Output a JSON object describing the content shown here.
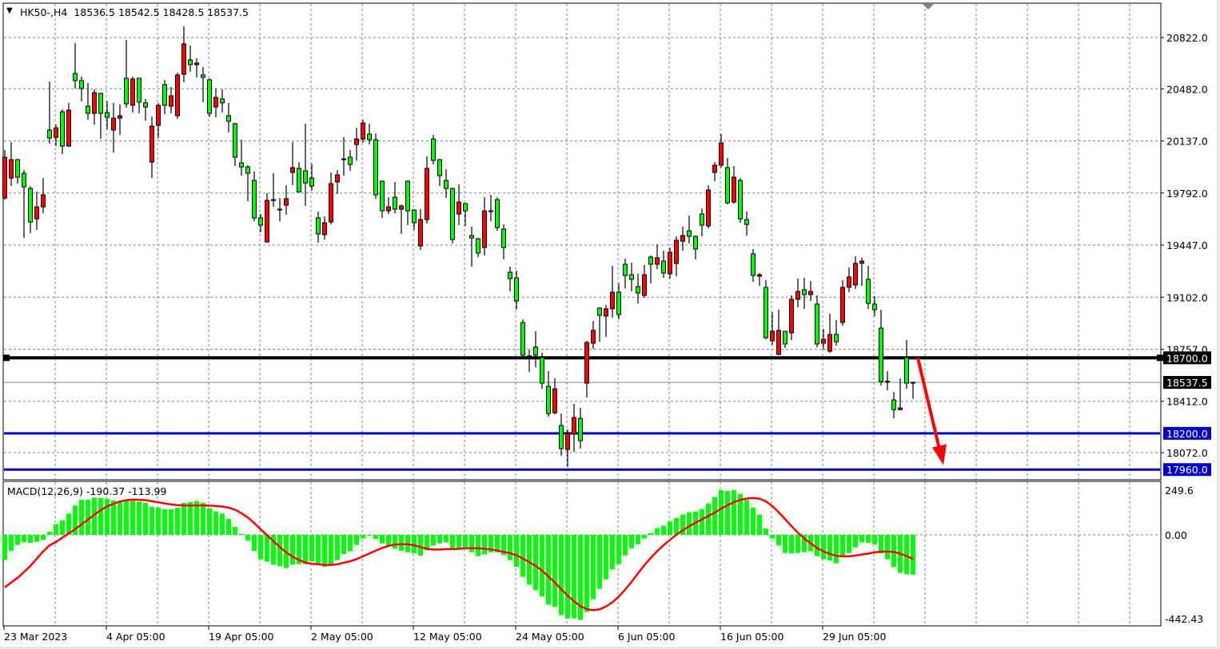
{
  "header": {
    "symbol": "HK50-,H4",
    "ohlc_text": "18536.5 18542.5 18428.5 18537.5",
    "menu_icon": "triangle-down-icon"
  },
  "colors": {
    "bull": "#ff0000",
    "bear": "#00ff00",
    "outline": "#000000",
    "grid": "#778899",
    "support_line": "#0000c8",
    "key_line": "#000000",
    "arrow": "#ff0000",
    "macd_hist": "#00ff00",
    "macd_signal": "#ff0000"
  },
  "chart_data": [
    {
      "type": "candlestick",
      "symbol": "HK50-",
      "timeframe": "H4",
      "ylim": [
        17898,
        20912
      ],
      "grid": true,
      "price_ticks": [
        "20822.0",
        "20482.0",
        "20137.0",
        "19792.0",
        "19447.0",
        "19102.0",
        "18757.0",
        "18412.0",
        "18072.0"
      ],
      "time_ticks": [
        {
          "bar": 0,
          "label": "23 Mar 2023"
        },
        {
          "bar": 16,
          "label": "4 Apr 05:00"
        },
        {
          "bar": 32,
          "label": "19 Apr 05:00"
        },
        {
          "bar": 48,
          "label": "2 May 05:00"
        },
        {
          "bar": 64,
          "label": "12 May 05:00"
        },
        {
          "bar": 80,
          "label": "24 May 05:00"
        },
        {
          "bar": 96,
          "label": "6 Jun 05:00"
        },
        {
          "bar": 112,
          "label": "16 Jun 05:00"
        },
        {
          "bar": 128,
          "label": "29 Jun 05:00"
        }
      ],
      "ohlc": [
        [
          19759,
          20076,
          19748,
          20029
        ],
        [
          19891,
          20129,
          19838,
          20013
        ],
        [
          20013,
          20018,
          19854,
          19897
        ],
        [
          19923,
          19944,
          19495,
          19833
        ],
        [
          19822,
          19838,
          19526,
          19600
        ],
        [
          19621,
          19801,
          19548,
          19700
        ],
        [
          19700,
          19891,
          19658,
          19780
        ],
        [
          20209,
          20531,
          20119,
          20156
        ],
        [
          20161,
          20245,
          20103,
          20224
        ],
        [
          20330,
          20346,
          20050,
          20103
        ],
        [
          20103,
          20389,
          20098,
          20341
        ],
        [
          20584,
          20785,
          20484,
          20537
        ],
        [
          20537,
          20563,
          20399,
          20484
        ],
        [
          20367,
          20521,
          20277,
          20320
        ],
        [
          20320,
          20478,
          20245,
          20457
        ],
        [
          20452,
          20455,
          20150,
          20320
        ],
        [
          20325,
          20399,
          20214,
          20293
        ],
        [
          20209,
          20389,
          20060,
          20288
        ],
        [
          20288,
          20378,
          20177,
          20304
        ],
        [
          20552,
          20806,
          20357,
          20383
        ],
        [
          20373,
          20563,
          20325,
          20547
        ],
        [
          20552,
          20555,
          20320,
          20394
        ],
        [
          20389,
          20415,
          20272,
          20362
        ],
        [
          19997,
          20298,
          19891,
          20235
        ],
        [
          20240,
          20389,
          20156,
          20373
        ],
        [
          20510,
          20542,
          20314,
          20373
        ],
        [
          20367,
          20494,
          20320,
          20436
        ],
        [
          20304,
          20589,
          20283,
          20574
        ],
        [
          20579,
          20896,
          20526,
          20780
        ],
        [
          20674,
          20769,
          20595,
          20642
        ],
        [
          20642,
          20685,
          20558,
          20653
        ],
        [
          20574,
          20627,
          20394,
          20558
        ],
        [
          20542,
          20552,
          20298,
          20320
        ],
        [
          20362,
          20484,
          20293,
          20425
        ],
        [
          20415,
          20478,
          20325,
          20389
        ],
        [
          20304,
          20389,
          20193,
          20267
        ],
        [
          20251,
          20256,
          19970,
          20029
        ],
        [
          19992,
          20145,
          19907,
          19965
        ],
        [
          19965,
          19976,
          19738,
          19923
        ],
        [
          19875,
          19934,
          19605,
          19627
        ],
        [
          19627,
          19653,
          19531,
          19579
        ],
        [
          19468,
          19791,
          19463,
          19743
        ],
        [
          19748,
          19923,
          19700,
          19745
        ],
        [
          19685,
          19759,
          19605,
          19680
        ],
        [
          19711,
          19843,
          19648,
          19754
        ],
        [
          19928,
          20129,
          19843,
          19960
        ],
        [
          19955,
          19997,
          19796,
          19799
        ],
        [
          19939,
          20251,
          19706,
          19859
        ],
        [
          19891,
          19986,
          19807,
          19838
        ],
        [
          19627,
          19669,
          19463,
          19521
        ],
        [
          19516,
          19637,
          19484,
          19595
        ],
        [
          19600,
          19928,
          19584,
          19854
        ],
        [
          19865,
          19944,
          19785,
          19912
        ],
        [
          20018,
          20161,
          19907,
          20015
        ],
        [
          20029,
          20076,
          19939,
          19981
        ],
        [
          20113,
          20224,
          20008,
          20150
        ],
        [
          20150,
          20277,
          20124,
          20256
        ],
        [
          20182,
          20251,
          20113,
          20145
        ],
        [
          20145,
          20187,
          19754,
          19780
        ],
        [
          19870,
          19875,
          19627,
          19674
        ],
        [
          19674,
          19764,
          19653,
          19700
        ],
        [
          19764,
          19865,
          19658,
          19685
        ],
        [
          19685,
          19716,
          19521,
          19706
        ],
        [
          19870,
          19875,
          19579,
          19674
        ],
        [
          19679,
          19685,
          19548,
          19595
        ],
        [
          19441,
          19685,
          19415,
          19616
        ],
        [
          19616,
          20034,
          19590,
          19955
        ],
        [
          20150,
          20177,
          19981,
          20008
        ],
        [
          20013,
          20018,
          19838,
          19907
        ],
        [
          19875,
          19949,
          19759,
          19822
        ],
        [
          19822,
          19827,
          19458,
          19484
        ],
        [
          19653,
          19849,
          19579,
          19732
        ],
        [
          19722,
          19727,
          19574,
          19674
        ],
        [
          19510,
          19569,
          19304,
          19494
        ],
        [
          19489,
          19494,
          19367,
          19394
        ],
        [
          19431,
          19764,
          19378,
          19674
        ],
        [
          19674,
          19780,
          19605,
          19671
        ],
        [
          19748,
          19764,
          19542,
          19563
        ],
        [
          19553,
          19584,
          19352,
          19431
        ],
        [
          19267,
          19304,
          19140,
          19225
        ],
        [
          19230,
          19278,
          19019,
          19077
        ],
        [
          18934,
          18955,
          18697,
          18718
        ],
        [
          18713,
          18755,
          18607,
          18708
        ],
        [
          18771,
          18876,
          18638,
          18718
        ],
        [
          18702,
          18734,
          18495,
          18532
        ],
        [
          18511,
          18612,
          18310,
          18331
        ],
        [
          18336,
          18564,
          18326,
          18495
        ],
        [
          18252,
          18331,
          18051,
          18099
        ],
        [
          18093,
          18225,
          17977,
          18199
        ],
        [
          18194,
          18395,
          18077,
          18305
        ],
        [
          18299,
          18368,
          18099,
          18151
        ],
        [
          18532,
          18812,
          18437,
          18802
        ],
        [
          18797,
          18945,
          18760,
          18882
        ],
        [
          19030,
          19035,
          18807,
          18982
        ],
        [
          18977,
          19051,
          18839,
          19025
        ],
        [
          19025,
          19310,
          18966,
          19135
        ],
        [
          19135,
          19193,
          18955,
          18987
        ],
        [
          19320,
          19357,
          19161,
          19246
        ],
        [
          19251,
          19331,
          19140,
          19220
        ],
        [
          19172,
          19257,
          19061,
          19130
        ],
        [
          19114,
          19315,
          19098,
          19251
        ],
        [
          19368,
          19378,
          19193,
          19320
        ],
        [
          19320,
          19452,
          19288,
          19363
        ],
        [
          19341,
          19410,
          19230,
          19262
        ],
        [
          19257,
          19431,
          19225,
          19400
        ],
        [
          19325,
          19505,
          19241,
          19479
        ],
        [
          19473,
          19569,
          19410,
          19510
        ],
        [
          19542,
          19643,
          19458,
          19505
        ],
        [
          19505,
          19510,
          19352,
          19421
        ],
        [
          19653,
          19690,
          19505,
          19579
        ],
        [
          19574,
          19843,
          19558,
          19812
        ],
        [
          19928,
          19997,
          19870,
          19976
        ],
        [
          19976,
          20182,
          19960,
          20124
        ],
        [
          19960,
          20024,
          19716,
          19727
        ],
        [
          19732,
          19971,
          19722,
          19897
        ],
        [
          19875,
          19891,
          19595,
          19621
        ],
        [
          19616,
          19669,
          19510,
          19584
        ],
        [
          19389,
          19421,
          19204,
          19246
        ],
        [
          19241,
          19262,
          19177,
          19251
        ],
        [
          19167,
          19214,
          18823,
          18834
        ],
        [
          18813,
          19002,
          18786,
          18876
        ],
        [
          18723,
          19019,
          18718,
          18882
        ],
        [
          18876,
          18879,
          18765,
          18792
        ],
        [
          18866,
          19114,
          18818,
          19088
        ],
        [
          19088,
          19225,
          19035,
          19140
        ],
        [
          19151,
          19230,
          19024,
          19119
        ],
        [
          19119,
          19209,
          19077,
          19140
        ],
        [
          19056,
          19114,
          18771,
          18792
        ],
        [
          18797,
          18892,
          18755,
          18823
        ],
        [
          18744,
          18992,
          18734,
          18855
        ],
        [
          18855,
          18950,
          18781,
          18807
        ],
        [
          18934,
          19214,
          18913,
          19167
        ],
        [
          19167,
          19299,
          19135,
          19236
        ],
        [
          19183,
          19373,
          19156,
          19326
        ],
        [
          19326,
          19363,
          19177,
          19341
        ],
        [
          19220,
          19310,
          19024,
          19061
        ],
        [
          19056,
          19109,
          18977,
          19019
        ],
        [
          18897,
          19019,
          18516,
          18543
        ],
        [
          18545,
          18612,
          18485,
          18540
        ],
        [
          18421,
          18474,
          18299,
          18357
        ],
        [
          18357,
          18564,
          18352,
          18368
        ],
        [
          18702,
          18818,
          18495,
          18532
        ],
        [
          18536.5,
          18542.5,
          18428.5,
          18537.5
        ]
      ],
      "horizontal_lines": [
        {
          "price": 18700.0,
          "label": "18700.0",
          "color": "#000000"
        },
        {
          "price": 18200.0,
          "label": "18200.0",
          "color": "#0000c8"
        },
        {
          "price": 17960.0,
          "label": "17960.0",
          "color": "#0000c8"
        }
      ],
      "bid": {
        "price": 18537.5,
        "label": "18537.5"
      },
      "arrow": {
        "from_price": 18700,
        "to_price": 17990,
        "color": "#ff0000",
        "direction": "down"
      }
    },
    {
      "type": "bar+line",
      "title": "MACD(12,26,9)",
      "main_value": "-190.37",
      "signal_value": "-113.99",
      "ylim": [
        -442.43,
        249.6
      ],
      "ticks": [
        "249.6",
        "0.00",
        "-442.43"
      ],
      "histogram": [
        -121,
        -76,
        -48,
        -36,
        -38,
        -33,
        -25,
        15,
        51,
        70,
        102,
        140,
        168,
        168,
        178,
        176,
        172,
        165,
        163,
        163,
        163,
        159,
        153,
        134,
        131,
        123,
        123,
        130,
        153,
        157,
        162,
        153,
        127,
        112,
        102,
        76,
        38,
        4,
        -28,
        -76,
        -117,
        -127,
        -143,
        -150,
        -159,
        -143,
        -140,
        -140,
        -127,
        -140,
        -153,
        -146,
        -121,
        -92,
        -79,
        -48,
        -18,
        -1,
        -20,
        -41,
        -53,
        -66,
        -76,
        -83,
        -89,
        -99,
        -74,
        -51,
        -41,
        -36,
        -66,
        -64,
        -60,
        -83,
        -102,
        -94,
        -84,
        -84,
        -97,
        -121,
        -153,
        -201,
        -239,
        -265,
        -295,
        -334,
        -346,
        -384,
        -400,
        -400,
        -407,
        -369,
        -308,
        -258,
        -213,
        -165,
        -140,
        -98,
        -64,
        -45,
        -18,
        8,
        32,
        43,
        64,
        80,
        97,
        108,
        111,
        123,
        150,
        181,
        214,
        210,
        214,
        195,
        167,
        131,
        97,
        31,
        -18,
        -51,
        -87,
        -89,
        -87,
        -83,
        -79,
        -102,
        -117,
        -123,
        -136,
        -108,
        -87,
        -60,
        -36,
        -38,
        -46,
        -89,
        -117,
        -154,
        -182,
        -188,
        -190.37
      ],
      "signal_initial": [
        -251,
        -228,
        -206,
        -178,
        -149,
        -114,
        -79,
        -50
      ]
    }
  ]
}
